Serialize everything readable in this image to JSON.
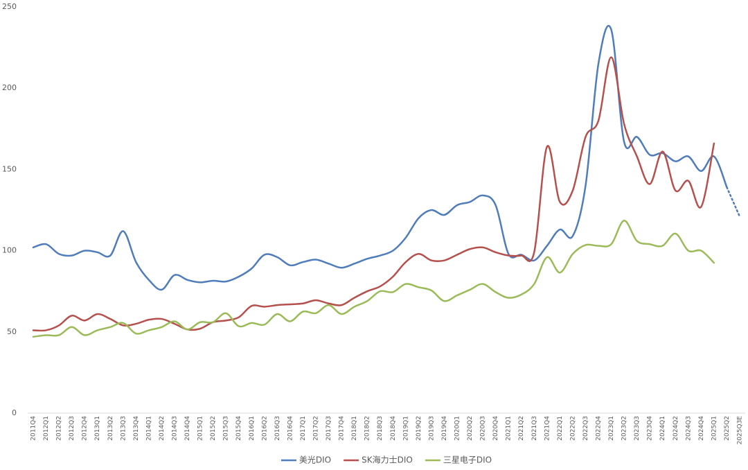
{
  "chart_data": {
    "type": "line",
    "categories": [
      "2011Q4",
      "2012Q1",
      "2012Q2",
      "2012Q3",
      "2012Q4",
      "2013Q1",
      "2013Q2",
      "2013Q3",
      "2013Q4",
      "2014Q1",
      "2014Q2",
      "2014Q3",
      "2014Q4",
      "2015Q1",
      "2015Q2",
      "2015Q3",
      "2015Q4",
      "2016Q1",
      "2016Q2",
      "2016Q3",
      "2016Q4",
      "2017Q1",
      "2017Q2",
      "2017Q3",
      "2017Q4",
      "2018Q1",
      "2018Q2",
      "2018Q3",
      "2018Q4",
      "2019Q1",
      "2019Q2",
      "2019Q3",
      "2019Q4",
      "2020Q1",
      "2020Q2",
      "2020Q3",
      "2020Q4",
      "2021Q1",
      "2021Q2",
      "2021Q3",
      "2021Q4",
      "2022Q1",
      "2022Q2",
      "2022Q3",
      "2022Q4",
      "2023Q1",
      "2023Q2",
      "2023Q3",
      "2023Q4",
      "2024Q1",
      "2024Q2",
      "2024Q3",
      "2024Q4",
      "2025Q1",
      "2025Q2",
      "2025Q3E"
    ],
    "series": [
      {
        "name": "美光DIO",
        "color": "#4f7cba",
        "dashed_from": 54,
        "values": [
          102,
          104,
          98,
          97,
          100,
          99,
          97,
          112,
          93,
          82,
          76,
          85,
          82,
          80.5,
          81.5,
          81,
          84,
          89,
          97.5,
          96,
          91,
          93,
          94.5,
          92,
          89.5,
          92,
          95,
          97,
          100,
          108,
          120,
          125,
          122,
          128,
          130,
          134,
          128,
          98,
          97.5,
          94,
          103,
          113,
          109,
          140,
          215,
          236,
          167,
          170,
          159,
          160,
          155,
          158,
          149,
          158,
          139,
          121
        ]
      },
      {
        "name": "SK海力士DIO",
        "color": "#b5504c",
        "values": [
          51,
          51,
          54,
          60,
          57,
          61,
          58,
          54,
          55,
          57.5,
          58,
          55,
          51.5,
          52,
          56,
          57,
          59,
          66,
          65.5,
          66.5,
          67,
          67.5,
          69.5,
          67.5,
          66.5,
          71,
          75,
          78,
          84,
          93,
          98,
          94,
          94,
          97.5,
          101,
          102,
          99,
          97,
          97,
          99,
          164,
          130,
          137,
          170,
          180,
          219,
          178,
          158,
          141,
          161,
          137,
          143,
          127,
          166,
          null,
          null
        ]
      },
      {
        "name": "三星电子DIO",
        "color": "#9bbb59",
        "values": [
          47,
          48,
          48,
          53,
          48,
          51,
          53,
          55.5,
          49,
          51,
          53,
          56.5,
          51.5,
          56,
          56,
          61.5,
          53.5,
          55.5,
          54.5,
          61,
          56.5,
          62.5,
          61.5,
          66.5,
          61,
          65.5,
          69,
          75,
          74.5,
          79.5,
          77.5,
          75.5,
          69,
          72.5,
          76,
          79.5,
          74.5,
          71,
          73,
          79.5,
          96,
          86.5,
          98,
          103.5,
          103,
          104,
          118.5,
          106,
          104,
          103,
          110.5,
          100,
          100,
          92.5,
          null,
          null
        ]
      }
    ],
    "ylim": [
      0,
      250
    ],
    "yticks": [
      0,
      50,
      100,
      150,
      200,
      250
    ],
    "grid": false,
    "legend": "bottom"
  }
}
